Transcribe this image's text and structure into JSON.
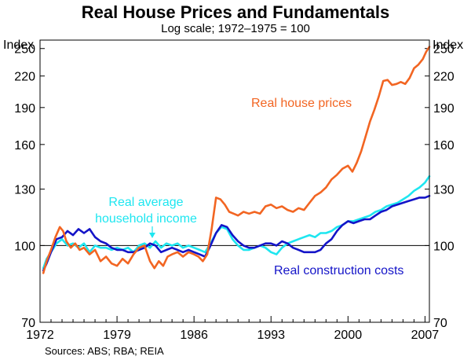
{
  "chart_data": {
    "type": "line",
    "title": "Real House Prices and Fundamentals",
    "subtitle": "Log scale; 1972–1975 = 100",
    "ylabel_left": "Index",
    "ylabel_right": "Index",
    "yscale": "log",
    "ylim": [
      70,
      260
    ],
    "yticks": [
      70,
      100,
      130,
      160,
      190,
      220,
      250
    ],
    "xlim": [
      1972,
      2007.4
    ],
    "xticks": [
      1972,
      1979,
      1986,
      1993,
      2000,
      2007
    ],
    "source": "Sources: ABS; RBA; REIA",
    "series": [
      {
        "name": "Real house prices",
        "color": "#f26522",
        "x": [
          1972.3,
          1972.6,
          1973.0,
          1973.4,
          1973.8,
          1974.1,
          1974.4,
          1974.8,
          1975.2,
          1975.6,
          1976.0,
          1976.5,
          1977.0,
          1977.5,
          1978.0,
          1978.5,
          1979.0,
          1979.5,
          1980.0,
          1980.5,
          1981.0,
          1981.5,
          1982.0,
          1982.4,
          1982.8,
          1983.2,
          1983.6,
          1984.0,
          1984.5,
          1985.0,
          1985.5,
          1986.0,
          1986.4,
          1986.8,
          1987.2,
          1987.6,
          1988.0,
          1988.4,
          1988.8,
          1989.2,
          1989.6,
          1990.0,
          1990.5,
          1991.0,
          1991.5,
          1992.0,
          1992.5,
          1993.0,
          1993.5,
          1994.0,
          1994.5,
          1995.0,
          1995.5,
          1996.0,
          1996.5,
          1997.0,
          1997.5,
          1998.0,
          1998.5,
          1999.0,
          1999.5,
          2000.0,
          2000.4,
          2000.8,
          2001.2,
          2001.6,
          2002.0,
          2002.4,
          2002.8,
          2003.2,
          2003.6,
          2004.0,
          2004.4,
          2004.8,
          2005.2,
          2005.6,
          2006.0,
          2006.4,
          2006.8,
          2007.1,
          2007.4
        ],
        "values": [
          88,
          93,
          98,
          104,
          109,
          107,
          102,
          99,
          101,
          98,
          99,
          96,
          98,
          93,
          95,
          92,
          91,
          94,
          92,
          96,
          99,
          100,
          93,
          90,
          93,
          91,
          95,
          96,
          97,
          95,
          97,
          96,
          95,
          93,
          96,
          108,
          125,
          124,
          121,
          117,
          116,
          115,
          117,
          116,
          117,
          116,
          120,
          121,
          119,
          120,
          118,
          117,
          119,
          118,
          122,
          126,
          128,
          131,
          136,
          139,
          143,
          145,
          141,
          147,
          155,
          166,
          178,
          188,
          200,
          215,
          216,
          211,
          212,
          214,
          212,
          218,
          228,
          232,
          238,
          246,
          252
        ],
        "label": "Real house prices"
      },
      {
        "name": "Real construction costs",
        "color": "#1414c8",
        "x": [
          1972.3,
          1972.6,
          1973.0,
          1973.5,
          1974.0,
          1974.5,
          1975.0,
          1975.5,
          1976.0,
          1976.5,
          1977.0,
          1977.5,
          1978.0,
          1978.5,
          1979.0,
          1979.5,
          1980.0,
          1980.5,
          1981.0,
          1981.5,
          1982.0,
          1982.5,
          1983.0,
          1983.5,
          1984.0,
          1984.5,
          1985.0,
          1985.5,
          1986.0,
          1986.5,
          1987.0,
          1987.5,
          1988.0,
          1988.5,
          1989.0,
          1989.5,
          1990.0,
          1990.5,
          1991.0,
          1991.5,
          1992.0,
          1992.5,
          1993.0,
          1993.5,
          1994.0,
          1994.5,
          1995.0,
          1995.5,
          1996.0,
          1996.5,
          1997.0,
          1997.5,
          1998.0,
          1998.5,
          1999.0,
          1999.5,
          2000.0,
          2000.5,
          2001.0,
          2001.5,
          2002.0,
          2002.5,
          2003.0,
          2003.5,
          2004.0,
          2004.5,
          2005.0,
          2005.5,
          2006.0,
          2006.5,
          2007.0,
          2007.4
        ],
        "values": [
          89,
          92,
          97,
          103,
          104,
          107,
          105,
          108,
          106,
          108,
          104,
          102,
          101,
          99,
          98,
          98,
          97,
          97,
          98,
          99,
          101,
          100,
          97,
          98,
          99,
          98,
          97,
          98,
          97,
          96,
          95,
          100,
          106,
          110,
          109,
          105,
          102,
          100,
          99,
          99,
          100,
          101,
          101,
          100,
          102,
          101,
          99,
          98,
          97,
          97,
          97,
          98,
          101,
          103,
          107,
          110,
          112,
          111,
          112,
          113,
          113,
          115,
          117,
          118,
          120,
          121,
          122,
          123,
          124,
          125,
          125,
          126
        ],
        "label": "Real construction costs"
      },
      {
        "name": "Real average household income",
        "color": "#1ee6f0",
        "x": [
          1972.3,
          1972.6,
          1973.0,
          1973.5,
          1974.0,
          1974.5,
          1975.0,
          1975.5,
          1976.0,
          1976.5,
          1977.0,
          1977.5,
          1978.0,
          1978.5,
          1979.0,
          1979.5,
          1980.0,
          1980.5,
          1981.0,
          1981.5,
          1982.0,
          1982.5,
          1983.0,
          1983.5,
          1984.0,
          1984.5,
          1985.0,
          1985.5,
          1986.0,
          1986.5,
          1987.0,
          1987.5,
          1988.0,
          1988.5,
          1989.0,
          1989.5,
          1990.0,
          1990.5,
          1991.0,
          1991.5,
          1992.0,
          1992.5,
          1993.0,
          1993.5,
          1994.0,
          1994.5,
          1995.0,
          1995.5,
          1996.0,
          1996.5,
          1997.0,
          1997.5,
          1998.0,
          1998.5,
          1999.0,
          1999.5,
          2000.0,
          2000.5,
          2001.0,
          2001.5,
          2002.0,
          2002.5,
          2003.0,
          2003.5,
          2004.0,
          2004.5,
          2005.0,
          2005.5,
          2006.0,
          2006.5,
          2007.0,
          2007.4
        ],
        "values": [
          90,
          94,
          97,
          101,
          103,
          100,
          101,
          99,
          101,
          97,
          100,
          99,
          99,
          98,
          99,
          98,
          99,
          97,
          100,
          101,
          99,
          102,
          99,
          101,
          100,
          101,
          99,
          100,
          99,
          98,
          97,
          101,
          106,
          109,
          108,
          103,
          100,
          98,
          98,
          99,
          100,
          99,
          97,
          96,
          99,
          101,
          102,
          103,
          104,
          105,
          104,
          106,
          106,
          107,
          109,
          110,
          112,
          112,
          113,
          114,
          115,
          117,
          118,
          120,
          121,
          122,
          124,
          126,
          129,
          131,
          134,
          138
        ],
        "label_lines": [
          "Real average",
          "household income"
        ]
      }
    ]
  }
}
